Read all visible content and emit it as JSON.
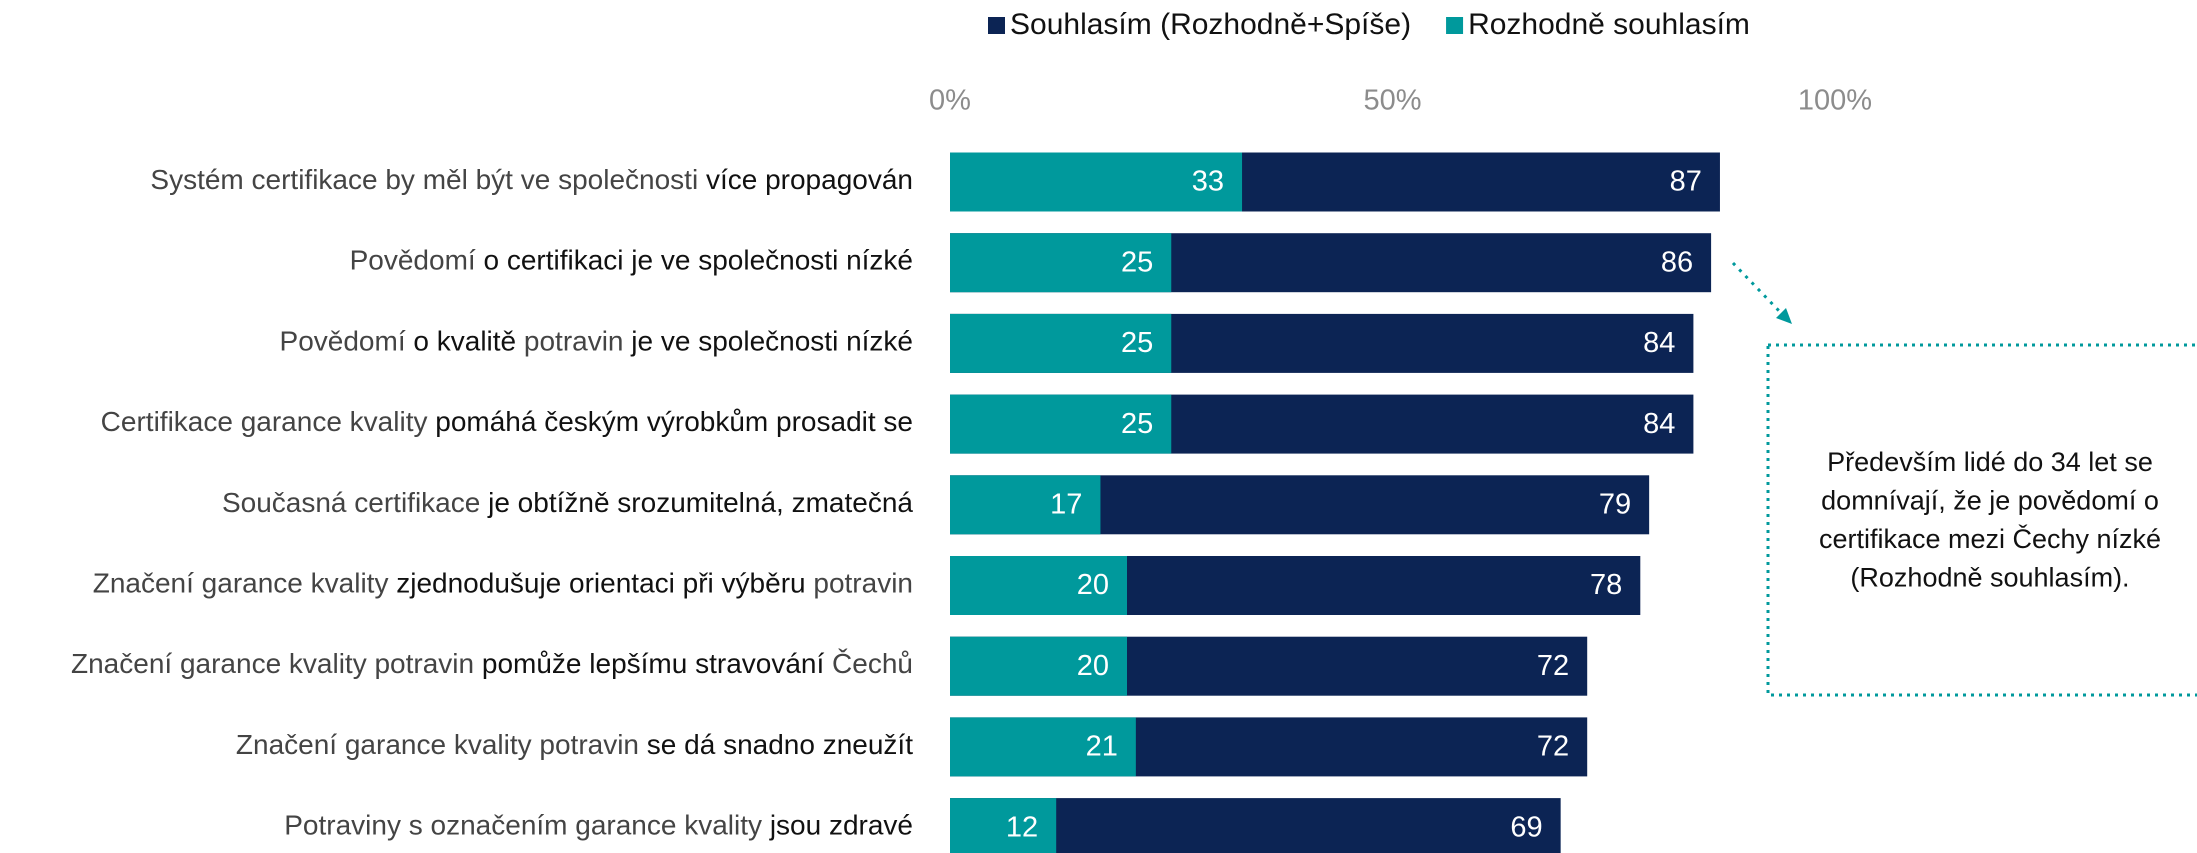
{
  "chart_data": {
    "type": "bar",
    "orientation": "horizontal",
    "categories": [
      [
        "Systém certifikace by měl být ve společnosti ",
        "více propagován"
      ],
      [
        "Povědomí ",
        "o certifikaci je ve společnosti nízké"
      ],
      [
        "Povědomí ",
        "o kvalitě",
        " potravin ",
        "je ve společnosti nízké"
      ],
      [
        "Certifikace garance kvality ",
        "pomáhá českým výrobkům prosadit se"
      ],
      [
        "Současná certifikace ",
        "je obtížně srozumitelná, zmatečná"
      ],
      [
        "Značení garance kvality ",
        "zjednodušuje orientaci při výběru",
        " potravin"
      ],
      [
        "Značení garance kvality potravin ",
        "pomůže lepšímu stravování",
        " Čechů"
      ],
      [
        "Značení garance kvality potravin ",
        "se dá snadno zneužít"
      ],
      [
        "Potraviny s označením garance kvality ",
        "jsou zdravé"
      ]
    ],
    "series": [
      {
        "name": "Souhlasím (Rozhodně+Spíše)",
        "color": "#0c2454",
        "values": [
          87,
          86,
          84,
          84,
          79,
          78,
          72,
          72,
          69
        ]
      },
      {
        "name": "Rozhodně souhlasím",
        "color": "#00999c",
        "values": [
          33,
          25,
          25,
          25,
          17,
          20,
          20,
          21,
          12
        ]
      }
    ],
    "xlim": [
      0,
      100
    ],
    "xticks": [
      {
        "value": 0,
        "label": "0%"
      },
      {
        "value": 50,
        "label": "50%"
      },
      {
        "value": 100,
        "label": "100%"
      }
    ],
    "annotation": [
      "Především lidé do 34 let se",
      "domnívají, že je povědomí o",
      "certifikace mezi Čechy nízké",
      "(Rozhodně souhlasím)."
    ]
  }
}
